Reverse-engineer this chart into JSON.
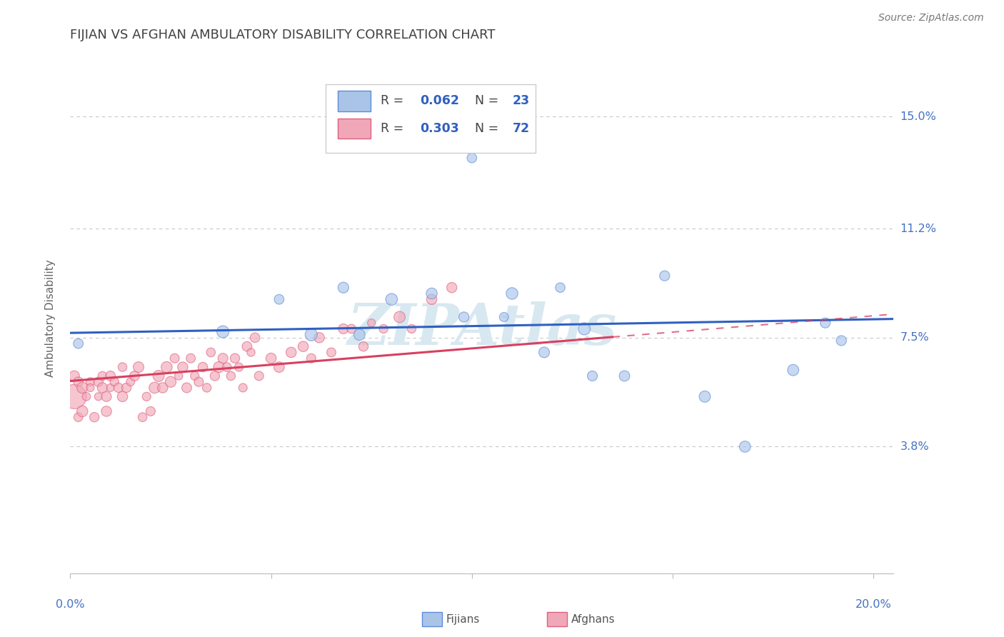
{
  "title": "FIJIAN VS AFGHAN AMBULATORY DISABILITY CORRELATION CHART",
  "source": "Source: ZipAtlas.com",
  "ylabel": "Ambulatory Disability",
  "xlim": [
    0.0,
    0.205
  ],
  "ylim": [
    -0.005,
    0.168
  ],
  "yticks": [
    0.038,
    0.075,
    0.112,
    0.15
  ],
  "ytick_labels": [
    "3.8%",
    "7.5%",
    "11.2%",
    "15.0%"
  ],
  "xtick_labels": [
    "0.0%",
    "20.0%"
  ],
  "fijian_color": "#aac4e8",
  "afghan_color": "#f0a8b8",
  "fijian_edge_color": "#5b8dd9",
  "afghan_edge_color": "#e06080",
  "fijian_line_color": "#3060c0",
  "afghan_line_color": "#d84060",
  "fijian_R": 0.062,
  "fijian_N": 23,
  "afghan_R": 0.303,
  "afghan_N": 72,
  "watermark": "ZIPAtlas",
  "fijian_x": [
    0.002,
    0.038,
    0.052,
    0.06,
    0.068,
    0.072,
    0.08,
    0.09,
    0.098,
    0.1,
    0.108,
    0.11,
    0.118,
    0.122,
    0.128,
    0.13,
    0.138,
    0.148,
    0.158,
    0.168,
    0.18,
    0.188,
    0.192
  ],
  "fijian_y": [
    0.073,
    0.077,
    0.088,
    0.076,
    0.092,
    0.076,
    0.088,
    0.09,
    0.082,
    0.136,
    0.082,
    0.09,
    0.07,
    0.092,
    0.078,
    0.062,
    0.062,
    0.096,
    0.055,
    0.038,
    0.064,
    0.08,
    0.074
  ],
  "afghan_x": [
    0.001,
    0.001,
    0.002,
    0.002,
    0.003,
    0.003,
    0.004,
    0.005,
    0.005,
    0.006,
    0.007,
    0.007,
    0.008,
    0.008,
    0.009,
    0.009,
    0.01,
    0.01,
    0.011,
    0.012,
    0.013,
    0.013,
    0.014,
    0.015,
    0.016,
    0.017,
    0.018,
    0.019,
    0.02,
    0.021,
    0.022,
    0.023,
    0.024,
    0.025,
    0.026,
    0.027,
    0.028,
    0.029,
    0.03,
    0.031,
    0.032,
    0.033,
    0.034,
    0.035,
    0.036,
    0.037,
    0.038,
    0.039,
    0.04,
    0.041,
    0.042,
    0.043,
    0.044,
    0.045,
    0.046,
    0.047,
    0.05,
    0.052,
    0.055,
    0.058,
    0.06,
    0.062,
    0.065,
    0.068,
    0.07,
    0.073,
    0.075,
    0.078,
    0.082,
    0.085,
    0.09,
    0.095
  ],
  "afghan_y": [
    0.055,
    0.062,
    0.048,
    0.06,
    0.05,
    0.058,
    0.055,
    0.06,
    0.058,
    0.048,
    0.055,
    0.06,
    0.058,
    0.062,
    0.05,
    0.055,
    0.058,
    0.062,
    0.06,
    0.058,
    0.065,
    0.055,
    0.058,
    0.06,
    0.062,
    0.065,
    0.048,
    0.055,
    0.05,
    0.058,
    0.062,
    0.058,
    0.065,
    0.06,
    0.068,
    0.062,
    0.065,
    0.058,
    0.068,
    0.062,
    0.06,
    0.065,
    0.058,
    0.07,
    0.062,
    0.065,
    0.068,
    0.065,
    0.062,
    0.068,
    0.065,
    0.058,
    0.072,
    0.07,
    0.075,
    0.062,
    0.068,
    0.065,
    0.07,
    0.072,
    0.068,
    0.075,
    0.07,
    0.078,
    0.078,
    0.072,
    0.08,
    0.078,
    0.082,
    0.078,
    0.088,
    0.092
  ],
  "afghan_large_x": [
    0.001
  ],
  "afghan_large_y": [
    0.07
  ],
  "background_color": "#ffffff",
  "grid_color": "#c8c8c8",
  "title_color": "#404040",
  "label_color": "#4472c4"
}
